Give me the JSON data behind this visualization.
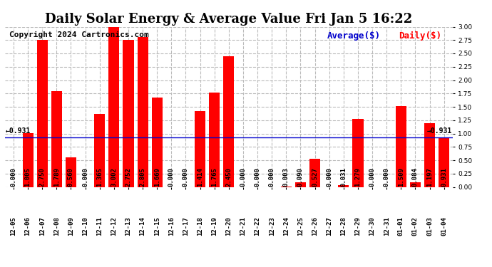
{
  "title": "Daily Solar Energy & Average Value Fri Jan 5 16:22",
  "copyright": "Copyright 2024 Cartronics.com",
  "categories": [
    "12-05",
    "12-06",
    "12-07",
    "12-08",
    "12-09",
    "12-10",
    "12-11",
    "12-12",
    "12-13",
    "12-14",
    "12-15",
    "12-16",
    "12-17",
    "12-18",
    "12-19",
    "12-20",
    "12-21",
    "12-22",
    "12-23",
    "12-24",
    "12-25",
    "12-26",
    "12-27",
    "12-28",
    "12-29",
    "12-30",
    "12-31",
    "01-01",
    "01-02",
    "01-03",
    "01-04"
  ],
  "values": [
    0.0,
    1.005,
    2.75,
    1.789,
    0.56,
    0.0,
    1.365,
    3.002,
    2.752,
    2.805,
    1.669,
    0.0,
    0.0,
    1.414,
    1.765,
    2.45,
    0.0,
    0.0,
    0.0,
    0.003,
    0.09,
    0.527,
    0.0,
    0.031,
    1.279,
    0.0,
    0.0,
    1.509,
    0.084,
    1.197,
    0.931
  ],
  "average_value": 0.931,
  "bar_color": "#ff0000",
  "average_line_color": "#0000cc",
  "legend_average_color": "#0000cc",
  "legend_daily_color": "#ff0000",
  "background_color": "#ffffff",
  "grid_color": "#bbbbbb",
  "ylim": [
    0.0,
    3.0
  ],
  "yticks": [
    0.0,
    0.25,
    0.5,
    0.75,
    1.0,
    1.25,
    1.5,
    1.75,
    2.0,
    2.25,
    2.5,
    2.75,
    3.0
  ],
  "title_fontsize": 13,
  "copyright_fontsize": 8,
  "label_fontsize": 6.5,
  "tick_fontsize": 6.5,
  "legend_fontsize": 9
}
